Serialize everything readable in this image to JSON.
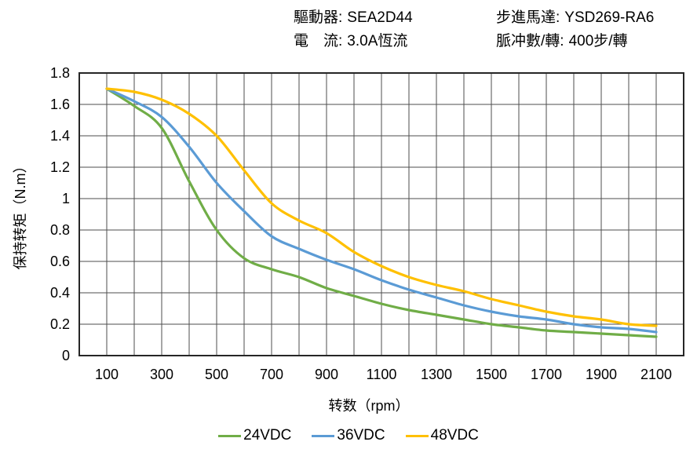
{
  "header": {
    "items": [
      {
        "label": "驅動器:",
        "value": "SEA2D44"
      },
      {
        "label": "電　流:",
        "value": "3.0A恆流"
      },
      {
        "label": "步進馬達:",
        "value": "YSD269-RA6"
      },
      {
        "label": "脈冲數/轉:",
        "value": "400步/轉"
      }
    ]
  },
  "chart_data": {
    "type": "line",
    "title": "",
    "xlabel": "转数（rpm）",
    "ylabel": "保持转矩（N.m）",
    "xlim": [
      0,
      2200
    ],
    "ylim": [
      0,
      1.8
    ],
    "grid": true,
    "x_grid_step": 100,
    "y_grid_step": 0.2,
    "x_ticks": [
      100,
      300,
      500,
      700,
      900,
      1100,
      1300,
      1500,
      1700,
      1900,
      2100
    ],
    "y_ticks": [
      0,
      0.2,
      0.4,
      0.6,
      0.8,
      1,
      1.2,
      1.4,
      1.6,
      1.8
    ],
    "legend_position": "bottom",
    "x": [
      100,
      200,
      300,
      400,
      500,
      600,
      700,
      800,
      900,
      1000,
      1100,
      1200,
      1300,
      1400,
      1500,
      1600,
      1700,
      1800,
      1900,
      2000,
      2100
    ],
    "series": [
      {
        "name": "24VDC",
        "color": "#70AD47",
        "values": [
          1.7,
          1.59,
          1.45,
          1.11,
          0.8,
          0.62,
          0.55,
          0.5,
          0.43,
          0.38,
          0.33,
          0.29,
          0.26,
          0.23,
          0.2,
          0.18,
          0.16,
          0.15,
          0.14,
          0.13,
          0.12
        ]
      },
      {
        "name": "36VDC",
        "color": "#5B9BD5",
        "values": [
          1.7,
          1.62,
          1.52,
          1.33,
          1.1,
          0.92,
          0.76,
          0.68,
          0.61,
          0.55,
          0.48,
          0.42,
          0.37,
          0.32,
          0.28,
          0.25,
          0.23,
          0.2,
          0.18,
          0.17,
          0.15
        ]
      },
      {
        "name": "48VDC",
        "color": "#FFC000",
        "values": [
          1.7,
          1.68,
          1.63,
          1.54,
          1.4,
          1.18,
          0.97,
          0.86,
          0.78,
          0.66,
          0.57,
          0.5,
          0.45,
          0.41,
          0.36,
          0.32,
          0.28,
          0.25,
          0.23,
          0.2,
          0.19
        ]
      }
    ],
    "axis_color": "#262626",
    "grid_color": "#4d4d4d"
  }
}
